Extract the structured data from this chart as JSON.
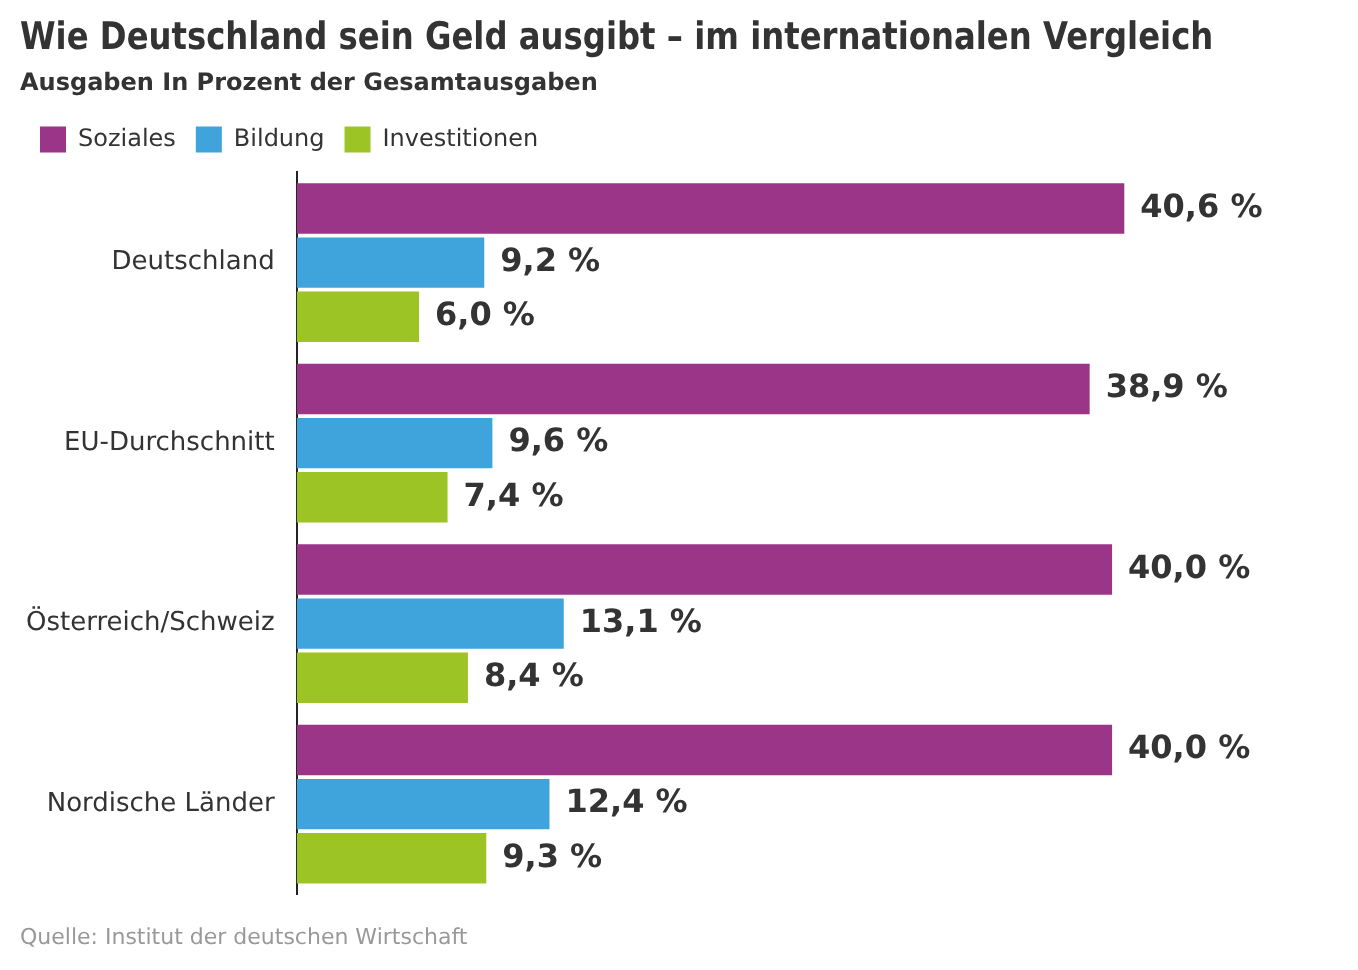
{
  "chart_data": {
    "type": "bar",
    "orientation": "horizontal",
    "title": "Wie Deutschland sein Geld ausgibt – im internationalen Vergleich",
    "subtitle": "Ausgaben In Prozent der Gesamtausgaben",
    "categories": [
      "Deutschland",
      "EU-Durchschnitt",
      "Österreich/Schweiz",
      "Nordische Länder"
    ],
    "series": [
      {
        "name": "Soziales",
        "color": "#9b3587",
        "values": [
          40.6,
          38.9,
          40.0,
          40.0
        ],
        "value_labels": [
          "40,6 %",
          "38,9 %",
          "40,0 %",
          "40,0 %"
        ]
      },
      {
        "name": "Bildung",
        "color": "#3fa3dc",
        "values": [
          9.2,
          9.6,
          13.1,
          12.4
        ],
        "value_labels": [
          "9,2 %",
          "9,6 %",
          "13,1 %",
          "12,4 %"
        ]
      },
      {
        "name": "Investitionen",
        "color": "#9cc424",
        "values": [
          6.0,
          7.4,
          8.4,
          9.3
        ],
        "value_labels": [
          "6,0 %",
          "7,4 %",
          "8,4 %",
          "9,3 %"
        ]
      }
    ],
    "legend": "top left",
    "annotations": [
      "Quelle: Institut der deutschen Wirtschaft"
    ]
  }
}
